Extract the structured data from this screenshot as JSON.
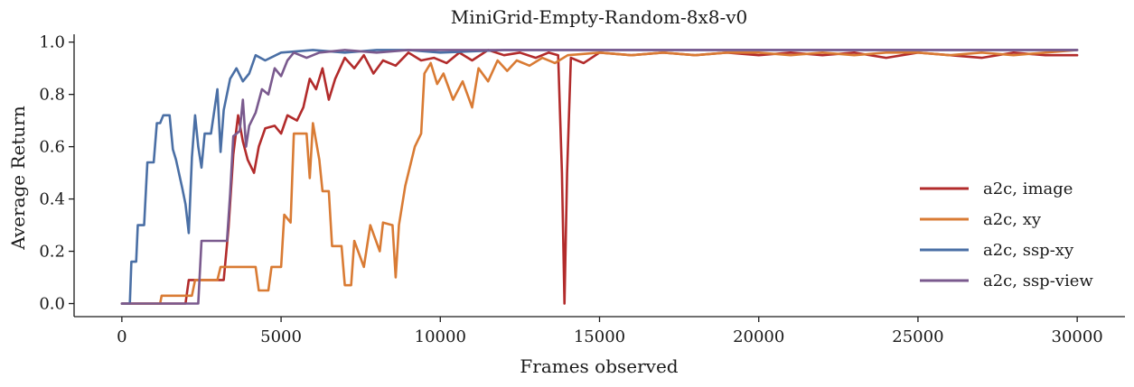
{
  "chart_data": {
    "type": "line",
    "title": "MiniGrid-Empty-Random-8x8-v0",
    "xlabel": "Frames observed",
    "ylabel": "Average Return",
    "xlim": [
      -1500,
      31500
    ],
    "ylim": [
      -0.05,
      1.03
    ],
    "xticks": [
      0,
      5000,
      10000,
      15000,
      20000,
      25000,
      30000
    ],
    "xtick_labels": [
      "0",
      "5000",
      "10000",
      "15000",
      "20000",
      "25000",
      "30000"
    ],
    "yticks": [
      0.0,
      0.2,
      0.4,
      0.6,
      0.8,
      1.0
    ],
    "ytick_labels": [
      "0.0",
      "0.2",
      "0.4",
      "0.6",
      "0.8",
      "1.0"
    ],
    "grid": false,
    "legend_position": "right",
    "series": [
      {
        "name": "a2c, image",
        "color": "#b22b2b",
        "points": [
          [
            0,
            0
          ],
          [
            2000,
            0
          ],
          [
            2100,
            0.09
          ],
          [
            3200,
            0.09
          ],
          [
            3350,
            0.29
          ],
          [
            3500,
            0.57
          ],
          [
            3650,
            0.72
          ],
          [
            3800,
            0.62
          ],
          [
            3950,
            0.55
          ],
          [
            4150,
            0.5
          ],
          [
            4300,
            0.6
          ],
          [
            4500,
            0.67
          ],
          [
            4800,
            0.68
          ],
          [
            5000,
            0.65
          ],
          [
            5200,
            0.72
          ],
          [
            5500,
            0.7
          ],
          [
            5700,
            0.75
          ],
          [
            5900,
            0.86
          ],
          [
            6100,
            0.82
          ],
          [
            6300,
            0.9
          ],
          [
            6500,
            0.78
          ],
          [
            6700,
            0.86
          ],
          [
            7000,
            0.94
          ],
          [
            7300,
            0.9
          ],
          [
            7600,
            0.95
          ],
          [
            7900,
            0.88
          ],
          [
            8200,
            0.93
          ],
          [
            8600,
            0.91
          ],
          [
            9000,
            0.96
          ],
          [
            9400,
            0.93
          ],
          [
            9800,
            0.94
          ],
          [
            10200,
            0.92
          ],
          [
            10600,
            0.96
          ],
          [
            11000,
            0.93
          ],
          [
            11500,
            0.97
          ],
          [
            12000,
            0.95
          ],
          [
            12500,
            0.96
          ],
          [
            13000,
            0.94
          ],
          [
            13400,
            0.96
          ],
          [
            13700,
            0.95
          ],
          [
            13820,
            0.5
          ],
          [
            13900,
            0.0
          ],
          [
            13980,
            0.5
          ],
          [
            14100,
            0.94
          ],
          [
            14500,
            0.92
          ],
          [
            15000,
            0.96
          ],
          [
            16000,
            0.95
          ],
          [
            17000,
            0.96
          ],
          [
            18000,
            0.95
          ],
          [
            19000,
            0.96
          ],
          [
            20000,
            0.95
          ],
          [
            21000,
            0.96
          ],
          [
            22000,
            0.95
          ],
          [
            23000,
            0.96
          ],
          [
            24000,
            0.94
          ],
          [
            25000,
            0.96
          ],
          [
            26000,
            0.95
          ],
          [
            27000,
            0.94
          ],
          [
            28000,
            0.96
          ],
          [
            29000,
            0.95
          ],
          [
            30000,
            0.95
          ]
        ]
      },
      {
        "name": "a2c, xy",
        "color": "#d97b34",
        "points": [
          [
            0,
            0
          ],
          [
            1200,
            0
          ],
          [
            1250,
            0.03
          ],
          [
            2200,
            0.03
          ],
          [
            2300,
            0.09
          ],
          [
            3000,
            0.09
          ],
          [
            3100,
            0.14
          ],
          [
            4200,
            0.14
          ],
          [
            4300,
            0.05
          ],
          [
            4600,
            0.05
          ],
          [
            4700,
            0.14
          ],
          [
            5000,
            0.14
          ],
          [
            5100,
            0.34
          ],
          [
            5300,
            0.31
          ],
          [
            5400,
            0.65
          ],
          [
            5800,
            0.65
          ],
          [
            5900,
            0.48
          ],
          [
            6000,
            0.69
          ],
          [
            6200,
            0.55
          ],
          [
            6300,
            0.43
          ],
          [
            6500,
            0.43
          ],
          [
            6600,
            0.22
          ],
          [
            6900,
            0.22
          ],
          [
            7000,
            0.07
          ],
          [
            7200,
            0.07
          ],
          [
            7300,
            0.24
          ],
          [
            7600,
            0.14
          ],
          [
            7800,
            0.3
          ],
          [
            8100,
            0.2
          ],
          [
            8200,
            0.31
          ],
          [
            8500,
            0.3
          ],
          [
            8600,
            0.1
          ],
          [
            8700,
            0.3
          ],
          [
            8900,
            0.45
          ],
          [
            9200,
            0.6
          ],
          [
            9400,
            0.65
          ],
          [
            9500,
            0.88
          ],
          [
            9700,
            0.92
          ],
          [
            9900,
            0.84
          ],
          [
            10100,
            0.88
          ],
          [
            10400,
            0.78
          ],
          [
            10700,
            0.85
          ],
          [
            11000,
            0.75
          ],
          [
            11200,
            0.9
          ],
          [
            11500,
            0.85
          ],
          [
            11800,
            0.93
          ],
          [
            12100,
            0.89
          ],
          [
            12400,
            0.93
          ],
          [
            12800,
            0.91
          ],
          [
            13200,
            0.94
          ],
          [
            13600,
            0.92
          ],
          [
            14000,
            0.95
          ],
          [
            15000,
            0.96
          ],
          [
            16000,
            0.95
          ],
          [
            17000,
            0.96
          ],
          [
            18000,
            0.95
          ],
          [
            19000,
            0.96
          ],
          [
            20000,
            0.96
          ],
          [
            21000,
            0.95
          ],
          [
            22000,
            0.96
          ],
          [
            23000,
            0.95
          ],
          [
            24000,
            0.96
          ],
          [
            25000,
            0.96
          ],
          [
            26000,
            0.95
          ],
          [
            27000,
            0.96
          ],
          [
            28000,
            0.95
          ],
          [
            29000,
            0.96
          ],
          [
            30000,
            0.97
          ]
        ]
      },
      {
        "name": "a2c, ssp-xy",
        "color": "#4a6fa5",
        "points": [
          [
            0,
            0
          ],
          [
            250,
            0
          ],
          [
            300,
            0.16
          ],
          [
            450,
            0.16
          ],
          [
            500,
            0.3
          ],
          [
            700,
            0.3
          ],
          [
            800,
            0.54
          ],
          [
            1000,
            0.54
          ],
          [
            1100,
            0.69
          ],
          [
            1200,
            0.69
          ],
          [
            1300,
            0.72
          ],
          [
            1500,
            0.72
          ],
          [
            1600,
            0.59
          ],
          [
            1700,
            0.55
          ],
          [
            1900,
            0.44
          ],
          [
            2000,
            0.38
          ],
          [
            2100,
            0.27
          ],
          [
            2200,
            0.56
          ],
          [
            2300,
            0.72
          ],
          [
            2400,
            0.6
          ],
          [
            2500,
            0.52
          ],
          [
            2600,
            0.65
          ],
          [
            2800,
            0.65
          ],
          [
            3000,
            0.82
          ],
          [
            3100,
            0.58
          ],
          [
            3200,
            0.74
          ],
          [
            3400,
            0.86
          ],
          [
            3600,
            0.9
          ],
          [
            3800,
            0.85
          ],
          [
            4000,
            0.88
          ],
          [
            4200,
            0.95
          ],
          [
            4500,
            0.93
          ],
          [
            5000,
            0.96
          ],
          [
            6000,
            0.97
          ],
          [
            7000,
            0.96
          ],
          [
            8000,
            0.97
          ],
          [
            9000,
            0.97
          ],
          [
            10000,
            0.96
          ],
          [
            12000,
            0.97
          ],
          [
            14000,
            0.97
          ],
          [
            16000,
            0.97
          ],
          [
            18000,
            0.97
          ],
          [
            20000,
            0.97
          ],
          [
            22000,
            0.97
          ],
          [
            24000,
            0.97
          ],
          [
            26000,
            0.97
          ],
          [
            28000,
            0.97
          ],
          [
            30000,
            0.97
          ]
        ]
      },
      {
        "name": "a2c, ssp-view",
        "color": "#7a5a8e",
        "points": [
          [
            0,
            0
          ],
          [
            2400,
            0
          ],
          [
            2500,
            0.24
          ],
          [
            2600,
            0.24
          ],
          [
            3300,
            0.24
          ],
          [
            3400,
            0.42
          ],
          [
            3500,
            0.64
          ],
          [
            3700,
            0.66
          ],
          [
            3800,
            0.78
          ],
          [
            3900,
            0.6
          ],
          [
            4000,
            0.68
          ],
          [
            4200,
            0.73
          ],
          [
            4400,
            0.82
          ],
          [
            4600,
            0.8
          ],
          [
            4800,
            0.9
          ],
          [
            5000,
            0.87
          ],
          [
            5200,
            0.93
          ],
          [
            5400,
            0.96
          ],
          [
            5800,
            0.94
          ],
          [
            6200,
            0.96
          ],
          [
            7000,
            0.97
          ],
          [
            8000,
            0.96
          ],
          [
            9000,
            0.97
          ],
          [
            10000,
            0.97
          ],
          [
            12000,
            0.97
          ],
          [
            14000,
            0.97
          ],
          [
            16000,
            0.97
          ],
          [
            18000,
            0.97
          ],
          [
            20000,
            0.97
          ],
          [
            22000,
            0.97
          ],
          [
            24000,
            0.97
          ],
          [
            26000,
            0.97
          ],
          [
            28000,
            0.97
          ],
          [
            30000,
            0.97
          ]
        ]
      }
    ]
  }
}
